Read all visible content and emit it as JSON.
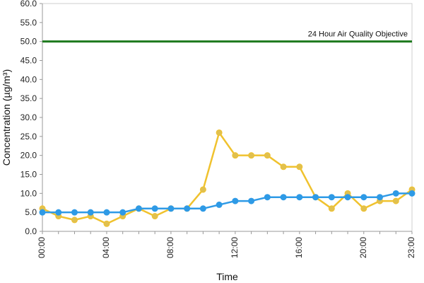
{
  "chart_data": {
    "type": "line",
    "title": "",
    "xlabel": "Time",
    "ylabel": "Concentration (µg/m³)",
    "x_ticks": [
      "00:00",
      "04:00",
      "08:00",
      "12:00",
      "16:00",
      "20:00",
      "23:00"
    ],
    "y_ticks": [
      "0.0",
      "5.0",
      "10.0",
      "15.0",
      "20.0",
      "25.0",
      "30.0",
      "35.0",
      "40.0",
      "45.0",
      "50.0",
      "55.0",
      "60.0"
    ],
    "ylim": [
      0,
      60
    ],
    "xlim": [
      0,
      23
    ],
    "grid": false,
    "x": [
      0,
      1,
      2,
      3,
      4,
      5,
      6,
      7,
      8,
      9,
      10,
      11,
      12,
      13,
      14,
      15,
      16,
      17,
      18,
      19,
      20,
      21,
      22,
      23
    ],
    "series": [
      {
        "values": [
          6,
          4,
          3,
          4,
          2,
          4,
          6,
          4,
          6,
          6,
          11,
          26,
          20,
          20,
          20,
          17,
          17,
          9,
          6,
          10,
          6,
          8,
          8,
          11
        ],
        "color": "#f0c22e",
        "marker_color": "#e0c050"
      },
      {
        "values": [
          5,
          5,
          5,
          5,
          5,
          5,
          6,
          6,
          6,
          6,
          6,
          7,
          8,
          8,
          9,
          9,
          9,
          9,
          9,
          9,
          9,
          9,
          10,
          10
        ],
        "color": "#2e9ae6",
        "marker_color": "#2e9ae6"
      }
    ],
    "reference_line": {
      "y": 50,
      "label": "24 Hour Air Quality Objective",
      "color": "#1e7a1e"
    }
  }
}
